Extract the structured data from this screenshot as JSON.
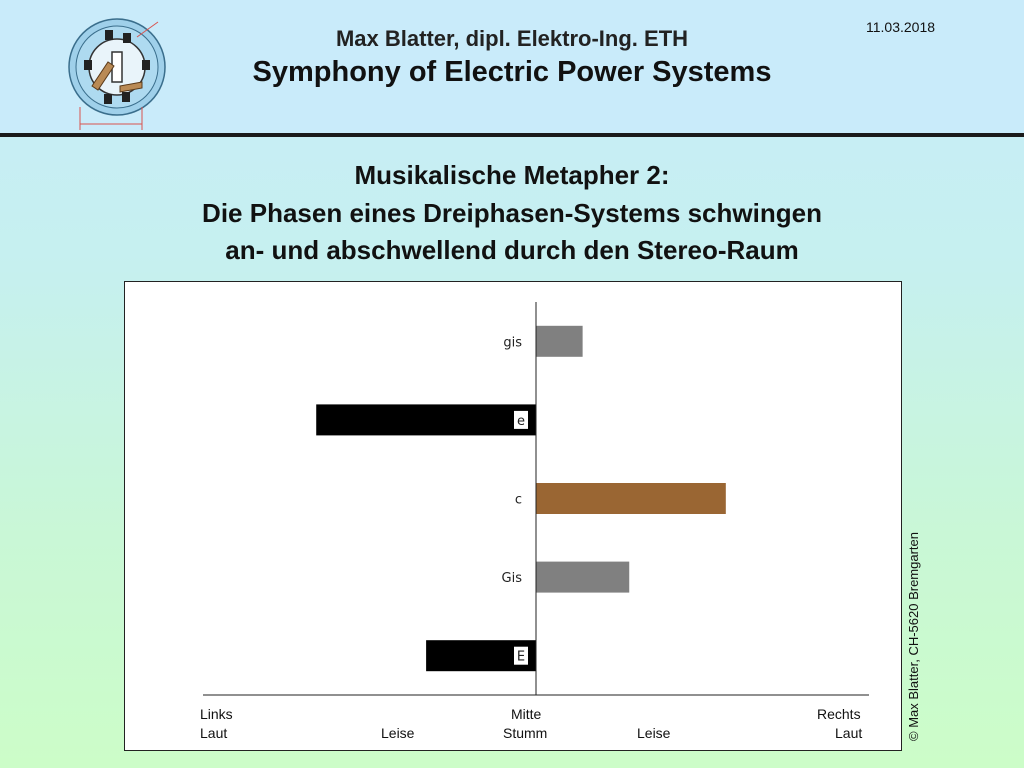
{
  "header": {
    "author": "Max Blatter, dipl. Elektro-Ing. ETH",
    "series_title": "Symphony of Electric Power Systems",
    "date": "11.03.2018"
  },
  "slide": {
    "title_line1": "Musikalische Metapher 2:",
    "title_line2": "Die Phasen eines Dreiphasen-Systems schwingen",
    "title_line3": "an- und abschwellend durch den Stereo-Raum"
  },
  "x_labels": {
    "left_top": "Links",
    "left_bottom": "Laut",
    "left_mid": "Leise",
    "center_top": "Mitte",
    "center_bottom": "Stumm",
    "right_mid": "Leise",
    "right_top": "Rechts",
    "right_bottom": "Laut"
  },
  "copyright": "© Max Blatter, CH-5620 Bremgarten",
  "chart_data": {
    "type": "bar",
    "orientation": "horizontal",
    "xlim": [
      -1,
      1
    ],
    "categories": [
      "gis",
      "e",
      "c",
      "Gis",
      "E"
    ],
    "values": [
      0.14,
      -0.66,
      0.57,
      0.28,
      -0.33
    ],
    "colors": [
      "#808080",
      "#000000",
      "#9a6633",
      "#808080",
      "#000000"
    ]
  }
}
